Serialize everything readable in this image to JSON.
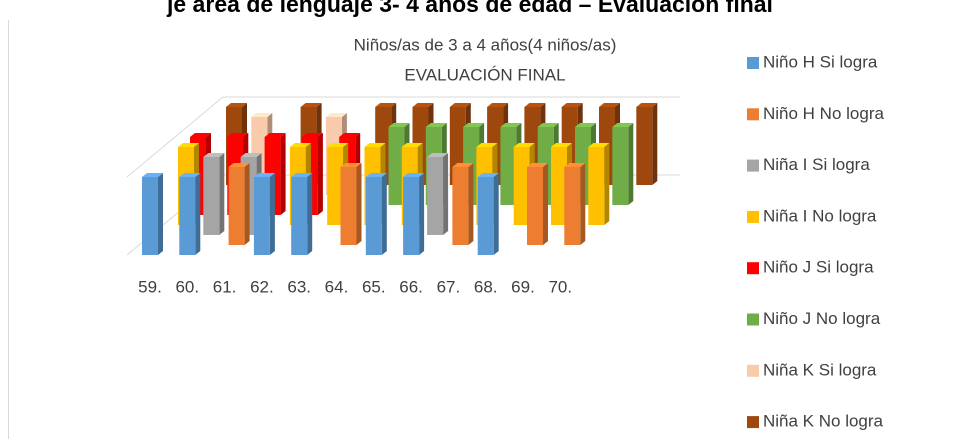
{
  "chart_data": {
    "type": "bar3d",
    "heading": "je área de lenguaje 3- 4 años de edad – Evaluación final",
    "title": "Niños/as de 3 a 4 años(4 niños/as)",
    "subtitle": "EVALUACIÓN FINAL",
    "categories": [
      "59.",
      "60.",
      "61.",
      "62.",
      "63.",
      "64.",
      "65.",
      "66.",
      "67.",
      "68.",
      "69.",
      "70."
    ],
    "ylim": [
      0,
      1
    ],
    "grid": true,
    "legend": "right",
    "series": [
      {
        "name": "Niño H Si logra",
        "color": "#5b9bd5",
        "values": [
          1,
          1,
          0,
          1,
          1,
          0,
          1,
          1,
          0,
          1,
          0,
          0
        ]
      },
      {
        "name": "Niño H No logra",
        "color": "#ed7d31",
        "values": [
          0,
          0,
          1,
          0,
          0,
          1,
          0,
          0,
          1,
          0,
          1,
          1
        ]
      },
      {
        "name": "Niña I Si logra",
        "color": "#a5a5a5",
        "values": [
          0,
          1,
          1,
          0,
          0,
          0,
          0,
          1,
          0,
          0,
          0,
          0
        ]
      },
      {
        "name": "Niña I No logra",
        "color": "#ffc000",
        "values": [
          1,
          0,
          0,
          1,
          1,
          1,
          1,
          0,
          1,
          1,
          1,
          1
        ]
      },
      {
        "name": "Niño J Si logra",
        "color": "#ff0000",
        "values": [
          1,
          1,
          1,
          1,
          1,
          0,
          0,
          0,
          0,
          0,
          0,
          0
        ]
      },
      {
        "name": "Niño J No logra",
        "color": "#70ad47",
        "values": [
          0,
          0,
          0,
          0,
          0,
          1,
          1,
          1,
          1,
          1,
          1,
          1
        ]
      },
      {
        "name": "Niña K Si logra",
        "color": "#f8cbad",
        "values": [
          0,
          1,
          0,
          1,
          0,
          0,
          0,
          0,
          0,
          0,
          0,
          0
        ]
      },
      {
        "name": "Niña K No logra",
        "color": "#9e480e",
        "values": [
          1,
          0,
          1,
          0,
          1,
          1,
          1,
          1,
          1,
          1,
          1,
          1
        ]
      }
    ]
  }
}
